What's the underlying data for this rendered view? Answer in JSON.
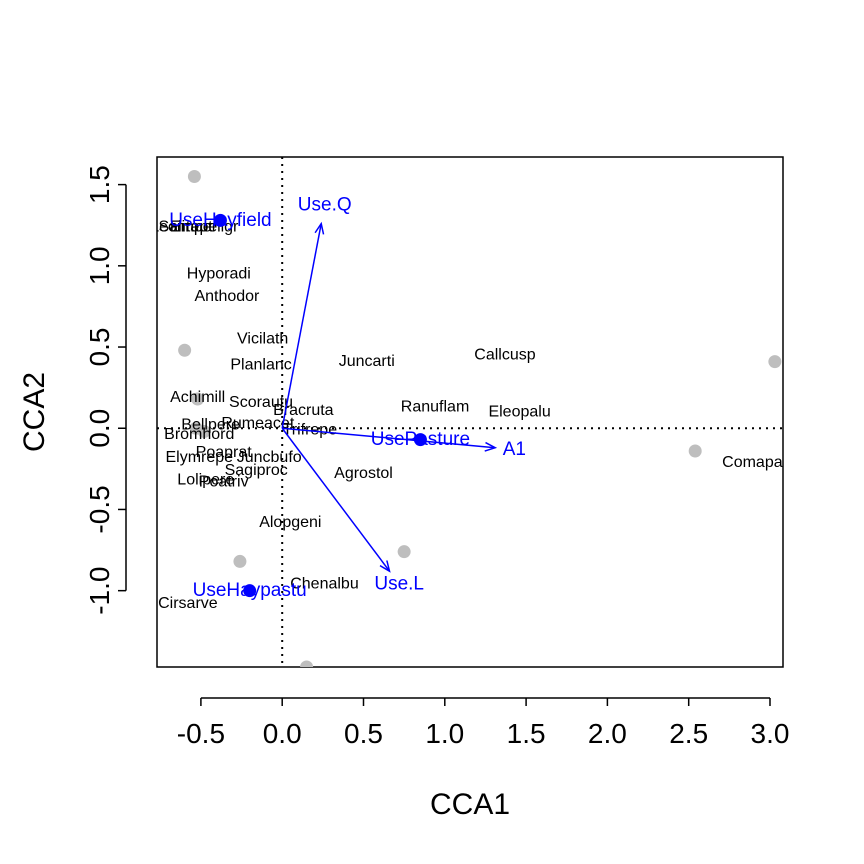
{
  "chart_data": {
    "type": "scatter",
    "xlabel": "CCA1",
    "ylabel": "CCA2",
    "xlim": [
      -0.77,
      3.08
    ],
    "ylim": [
      -1.47,
      1.67
    ],
    "x_ticks": [
      "-0.5",
      "0.0",
      "0.5",
      "1.0",
      "1.5",
      "2.0",
      "2.5",
      "3.0"
    ],
    "y_ticks": [
      "-1.0",
      "-0.5",
      "0.0",
      "0.5",
      "1.0",
      "1.5"
    ],
    "colors": {
      "biplot": "#0000ff",
      "sites": "#bebebe",
      "species": "#000000",
      "axes": "#000000"
    },
    "sites": [
      {
        "x": -0.54,
        "y": 1.55
      },
      {
        "x": -0.6,
        "y": 0.48
      },
      {
        "x": -0.52,
        "y": 0.18
      },
      {
        "x": -0.53,
        "y": 0.0
      },
      {
        "x": -0.48,
        "y": -0.02
      },
      {
        "x": -0.26,
        "y": -0.82
      },
      {
        "x": 0.15,
        "y": -1.47
      },
      {
        "x": 0.75,
        "y": -0.76
      },
      {
        "x": 2.54,
        "y": -0.14
      },
      {
        "x": 3.03,
        "y": 0.41
      }
    ],
    "species": [
      {
        "label": "Hyporadi",
        "x": -0.39,
        "y": 0.95
      },
      {
        "label": "Anthodor",
        "x": -0.34,
        "y": 0.81
      },
      {
        "label": "Vicilath",
        "x": -0.12,
        "y": 0.55
      },
      {
        "label": "Planlanc",
        "x": -0.13,
        "y": 0.39
      },
      {
        "label": "Juncarti",
        "x": 0.52,
        "y": 0.41
      },
      {
        "label": "Callcusp",
        "x": 1.37,
        "y": 0.45
      },
      {
        "label": "Achimill",
        "x": -0.52,
        "y": 0.19
      },
      {
        "label": "Scorautu",
        "x": -0.13,
        "y": 0.16
      },
      {
        "label": "Bracruta",
        "x": 0.13,
        "y": 0.11
      },
      {
        "label": "Ranuflam",
        "x": 0.94,
        "y": 0.13
      },
      {
        "label": "Eleopalu",
        "x": 1.46,
        "y": 0.1
      },
      {
        "label": "Bellpere",
        "x": -0.44,
        "y": 0.02
      },
      {
        "label": "Rumeacet",
        "x": -0.15,
        "y": 0.03
      },
      {
        "label": "Trifrepe",
        "x": 0.17,
        "y": -0.01
      },
      {
        "label": "Bromhord",
        "x": -0.51,
        "y": -0.04
      },
      {
        "label": "Elymrepe",
        "x": -0.51,
        "y": -0.18
      },
      {
        "label": "Poaprat",
        "x": -0.36,
        "y": -0.15
      },
      {
        "label": "Juncbufo",
        "x": -0.08,
        "y": -0.18
      },
      {
        "label": "Sagiproc",
        "x": -0.16,
        "y": -0.26
      },
      {
        "label": "Agrostol",
        "x": 0.5,
        "y": -0.28
      },
      {
        "label": "Lolipere",
        "x": -0.47,
        "y": -0.32
      },
      {
        "label": "Poatriv",
        "x": -0.36,
        "y": -0.33
      },
      {
        "label": "Alopgeni",
        "x": 0.05,
        "y": -0.58
      },
      {
        "label": "Chenalbu",
        "x": 0.26,
        "y": -0.96
      },
      {
        "label": "Cirsarve",
        "x": -0.58,
        "y": -1.08
      },
      {
        "label": "Comapalu",
        "x": 2.93,
        "y": -0.21
      },
      {
        "label": "Leontaut",
        "x": -0.62,
        "y": 1.24
      },
      {
        "label": "Empenigr",
        "x": -0.48,
        "y": 1.24
      },
      {
        "label": "Salirepe",
        "x": -0.58,
        "y": 1.24
      }
    ],
    "biplot": [
      {
        "label": "Use.Q",
        "x": 0.24,
        "y": 1.26
      },
      {
        "label": "A1",
        "x": 1.31,
        "y": -0.12
      },
      {
        "label": "Use.L",
        "x": 0.66,
        "y": -0.88
      }
    ],
    "centroids": [
      {
        "label": "UseHayfield",
        "x": -0.38,
        "y": 1.28
      },
      {
        "label": "UsePasture",
        "x": 0.85,
        "y": -0.07
      },
      {
        "label": "UseHaypastu",
        "x": -0.2,
        "y": -1.0
      }
    ]
  }
}
